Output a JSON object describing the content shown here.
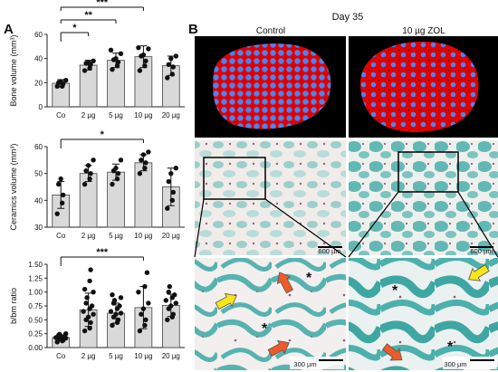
{
  "panel_labels": {
    "a": "A",
    "b": "B"
  },
  "b_panel": {
    "title": "Day 35",
    "columns": [
      "Control",
      "10 µg ZOL"
    ],
    "scale_bars": [
      "600 µm",
      "600 µm",
      "300 µm",
      "300 µm"
    ],
    "asterisk": "*"
  },
  "colors": {
    "bar_fill": "#d9d9d9",
    "bar_stroke": "#444444",
    "point": "#111111",
    "ct_bone": "#e00000",
    "ct_ceramic": "#4b84f0",
    "ct_bg": "#000000",
    "stain_teal": "#56b3b0",
    "stain_tissue": "#f1ecea",
    "arrow_yellow": "#f7e51a",
    "arrow_red": "#ee5a2a"
  },
  "chart_data": [
    {
      "type": "bar",
      "ylabel": "Bone volume (mm³)",
      "categories": [
        "Co",
        "2 µg",
        "5 µg",
        "10 µg",
        "20 µg"
      ],
      "values": [
        19.5,
        34.5,
        38.5,
        41.5,
        34
      ],
      "errors": [
        3,
        4,
        6,
        9,
        8
      ],
      "points": [
        [
          17,
          17,
          19,
          20,
          21,
          22
        ],
        [
          30,
          32,
          35,
          36,
          37,
          38
        ],
        [
          31,
          34,
          37,
          39,
          40,
          44,
          47
        ],
        [
          30,
          34,
          38,
          42,
          43,
          48,
          49
        ],
        [
          24,
          27,
          33,
          35,
          40,
          42
        ]
      ],
      "ylim": [
        0,
        60
      ],
      "yticks": [
        0,
        20,
        40,
        60
      ],
      "significance": [
        {
          "from": 0,
          "to": 3,
          "label": "***"
        },
        {
          "from": 0,
          "to": 2,
          "label": "**"
        },
        {
          "from": 0,
          "to": 1,
          "label": "*"
        }
      ]
    },
    {
      "type": "bar",
      "ylabel": "Ceramics volume (mm³)",
      "categories": [
        "Co",
        "2 µg",
        "5 µg",
        "10 µg",
        "20 µg"
      ],
      "values": [
        42,
        50,
        50.5,
        54,
        45
      ],
      "errors": [
        5,
        3,
        3,
        3,
        7
      ],
      "points": [
        [
          35,
          39,
          42,
          46,
          48
        ],
        [
          46,
          48,
          50,
          51,
          53,
          55
        ],
        [
          46,
          48,
          50,
          51,
          52,
          55
        ],
        [
          50,
          52,
          54,
          55,
          57,
          58
        ],
        [
          37,
          40,
          43,
          47,
          50,
          52
        ]
      ],
      "ylim": [
        30,
        60
      ],
      "yticks": [
        30,
        40,
        50,
        60
      ],
      "significance": [
        {
          "from": 0,
          "to": 3,
          "label": "*"
        }
      ]
    },
    {
      "type": "bar",
      "ylabel": "b/bm ratio",
      "categories": [
        "Co",
        "2 µg",
        "5 µg",
        "10 µg",
        "20 µg"
      ],
      "values": [
        0.18,
        0.68,
        0.62,
        0.72,
        0.76
      ],
      "errors": [
        0.05,
        0.3,
        0.18,
        0.38,
        0.2
      ],
      "points": [
        [
          0.1,
          0.12,
          0.13,
          0.15,
          0.16,
          0.17,
          0.18,
          0.19,
          0.2,
          0.22,
          0.24,
          0.25
        ],
        [
          0.3,
          0.35,
          0.45,
          0.5,
          0.55,
          0.6,
          0.65,
          0.7,
          0.75,
          0.8,
          0.9,
          1.0,
          1.05,
          1.2,
          1.4
        ],
        [
          0.4,
          0.45,
          0.5,
          0.55,
          0.6,
          0.62,
          0.65,
          0.7,
          0.75,
          0.8,
          0.85,
          0.9,
          0.95
        ],
        [
          0.3,
          0.4,
          0.5,
          0.6,
          0.7,
          0.8,
          1.0,
          1.1,
          1.35
        ],
        [
          0.5,
          0.55,
          0.6,
          0.7,
          0.75,
          0.8,
          0.85,
          0.9,
          0.95,
          1.0,
          1.1
        ]
      ],
      "ylim": [
        0,
        1.5
      ],
      "yticks": [
        0.0,
        0.25,
        0.5,
        0.75,
        1.0,
        1.25,
        1.5
      ],
      "tick_labels": [
        "0.00",
        "0.25",
        "0.50",
        "0.75",
        "1.00",
        "1.25",
        "1.50"
      ],
      "significance": [
        {
          "from": 0,
          "to": 3,
          "label": "***"
        }
      ]
    }
  ]
}
